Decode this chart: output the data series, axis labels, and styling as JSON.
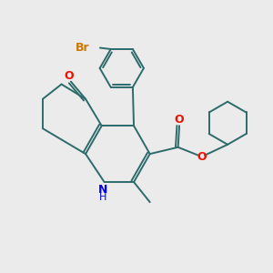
{
  "background_color": "#ebebeb",
  "bond_color": "#2d6b6b",
  "atom_colors": {
    "N": "#0000ee",
    "O": "#ee1100",
    "Br": "#cc7700"
  },
  "figsize": [
    3.0,
    3.0
  ],
  "dpi": 100
}
